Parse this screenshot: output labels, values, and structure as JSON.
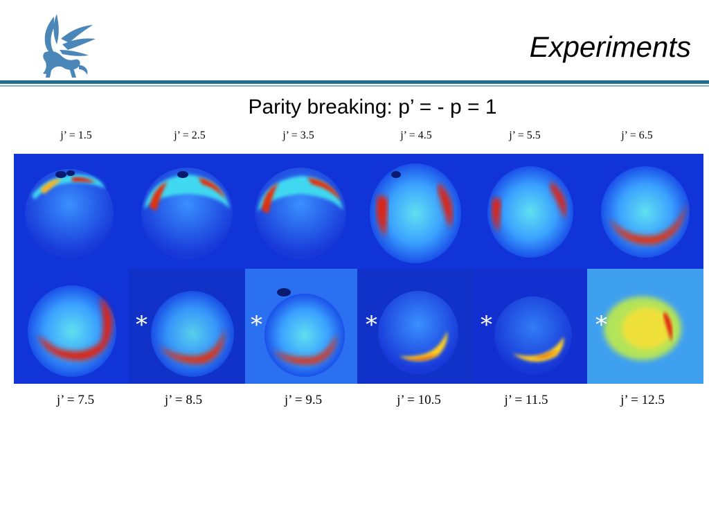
{
  "header": {
    "title": "Experiments",
    "logo_icon": "griffin-logo-icon",
    "rule_color": "#1f6e96"
  },
  "slide": {
    "subtitle": "Parity breaking: p’ = - p = 1"
  },
  "top_row_labels": [
    "j’ = 1.5",
    "j’ = 2.5",
    "j’ = 3.5",
    "j’ = 4.5",
    "j’ = 5.5",
    "j’ = 6.5"
  ],
  "bottom_row_labels": [
    "j’ = 7.5",
    "j’ = 8.5",
    "j’ = 9.5",
    "j’ = 10.5",
    "j’ = 11.5",
    "j’ = 12.5"
  ],
  "marker": "*",
  "colormap": {
    "background": "#1030d8",
    "low": "#3aa0ff",
    "mid": "#40e0e8",
    "high": "#ffd020",
    "peak": "#d81010"
  }
}
